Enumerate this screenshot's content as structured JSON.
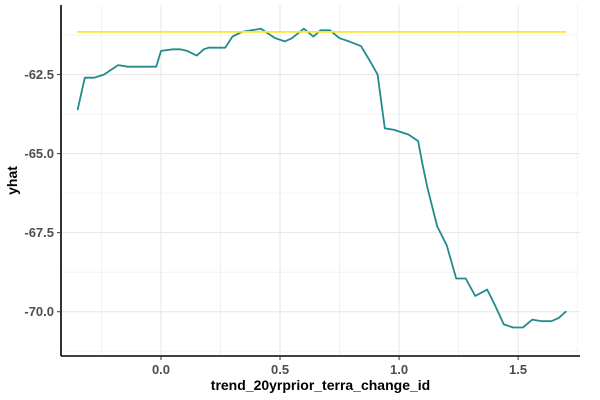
{
  "chart_data": {
    "type": "line",
    "xlabel": "trend_20yrprior_terra_change_id",
    "ylabel": "yhat",
    "xlim": [
      -0.42,
      1.76
    ],
    "ylim": [
      -71.4,
      -60.3
    ],
    "x_ticks": [
      0.0,
      0.5,
      1.0,
      1.5
    ],
    "x_tick_labels": [
      "0.0",
      "0.5",
      "1.0",
      "1.5"
    ],
    "y_ticks": [
      -62.5,
      -65.0,
      -67.5,
      -70.0
    ],
    "y_tick_labels": [
      "-62.5",
      "-65.0",
      "-67.5",
      "-70.0"
    ],
    "grid": true,
    "series": [
      {
        "color": "#238a8d",
        "x": [
          -0.35,
          -0.32,
          -0.28,
          -0.24,
          -0.2,
          -0.18,
          -0.14,
          -0.1,
          -0.06,
          -0.02,
          0.0,
          0.05,
          0.08,
          0.11,
          0.15,
          0.18,
          0.2,
          0.23,
          0.27,
          0.3,
          0.34,
          0.38,
          0.42,
          0.45,
          0.48,
          0.52,
          0.55,
          0.6,
          0.64,
          0.67,
          0.71,
          0.75,
          0.79,
          0.84,
          0.86,
          0.88,
          0.91,
          0.94,
          0.98,
          1.04,
          1.08,
          1.1,
          1.12,
          1.16,
          1.2,
          1.24,
          1.28,
          1.32,
          1.37,
          1.4,
          1.44,
          1.48,
          1.52,
          1.56,
          1.6,
          1.64,
          1.67,
          1.7
        ],
        "y": [
          -63.6,
          -62.6,
          -62.6,
          -62.5,
          -62.3,
          -62.2,
          -62.25,
          -62.25,
          -62.25,
          -62.25,
          -61.75,
          -61.7,
          -61.7,
          -61.75,
          -61.9,
          -61.7,
          -61.65,
          -61.65,
          -61.65,
          -61.3,
          -61.15,
          -61.1,
          -61.05,
          -61.2,
          -61.35,
          -61.45,
          -61.35,
          -61.05,
          -61.3,
          -61.1,
          -61.1,
          -61.35,
          -61.45,
          -61.6,
          -61.85,
          -62.1,
          -62.5,
          -64.2,
          -64.25,
          -64.4,
          -64.6,
          -65.4,
          -66.1,
          -67.3,
          -67.9,
          -68.95,
          -68.95,
          -69.5,
          -69.3,
          -69.75,
          -70.4,
          -70.5,
          -70.5,
          -70.25,
          -70.3,
          -70.3,
          -70.2,
          -70.0
        ]
      },
      {
        "color": "#fde725",
        "x": [
          -0.35,
          1.7
        ],
        "y": [
          -61.15,
          -61.15
        ]
      }
    ]
  }
}
